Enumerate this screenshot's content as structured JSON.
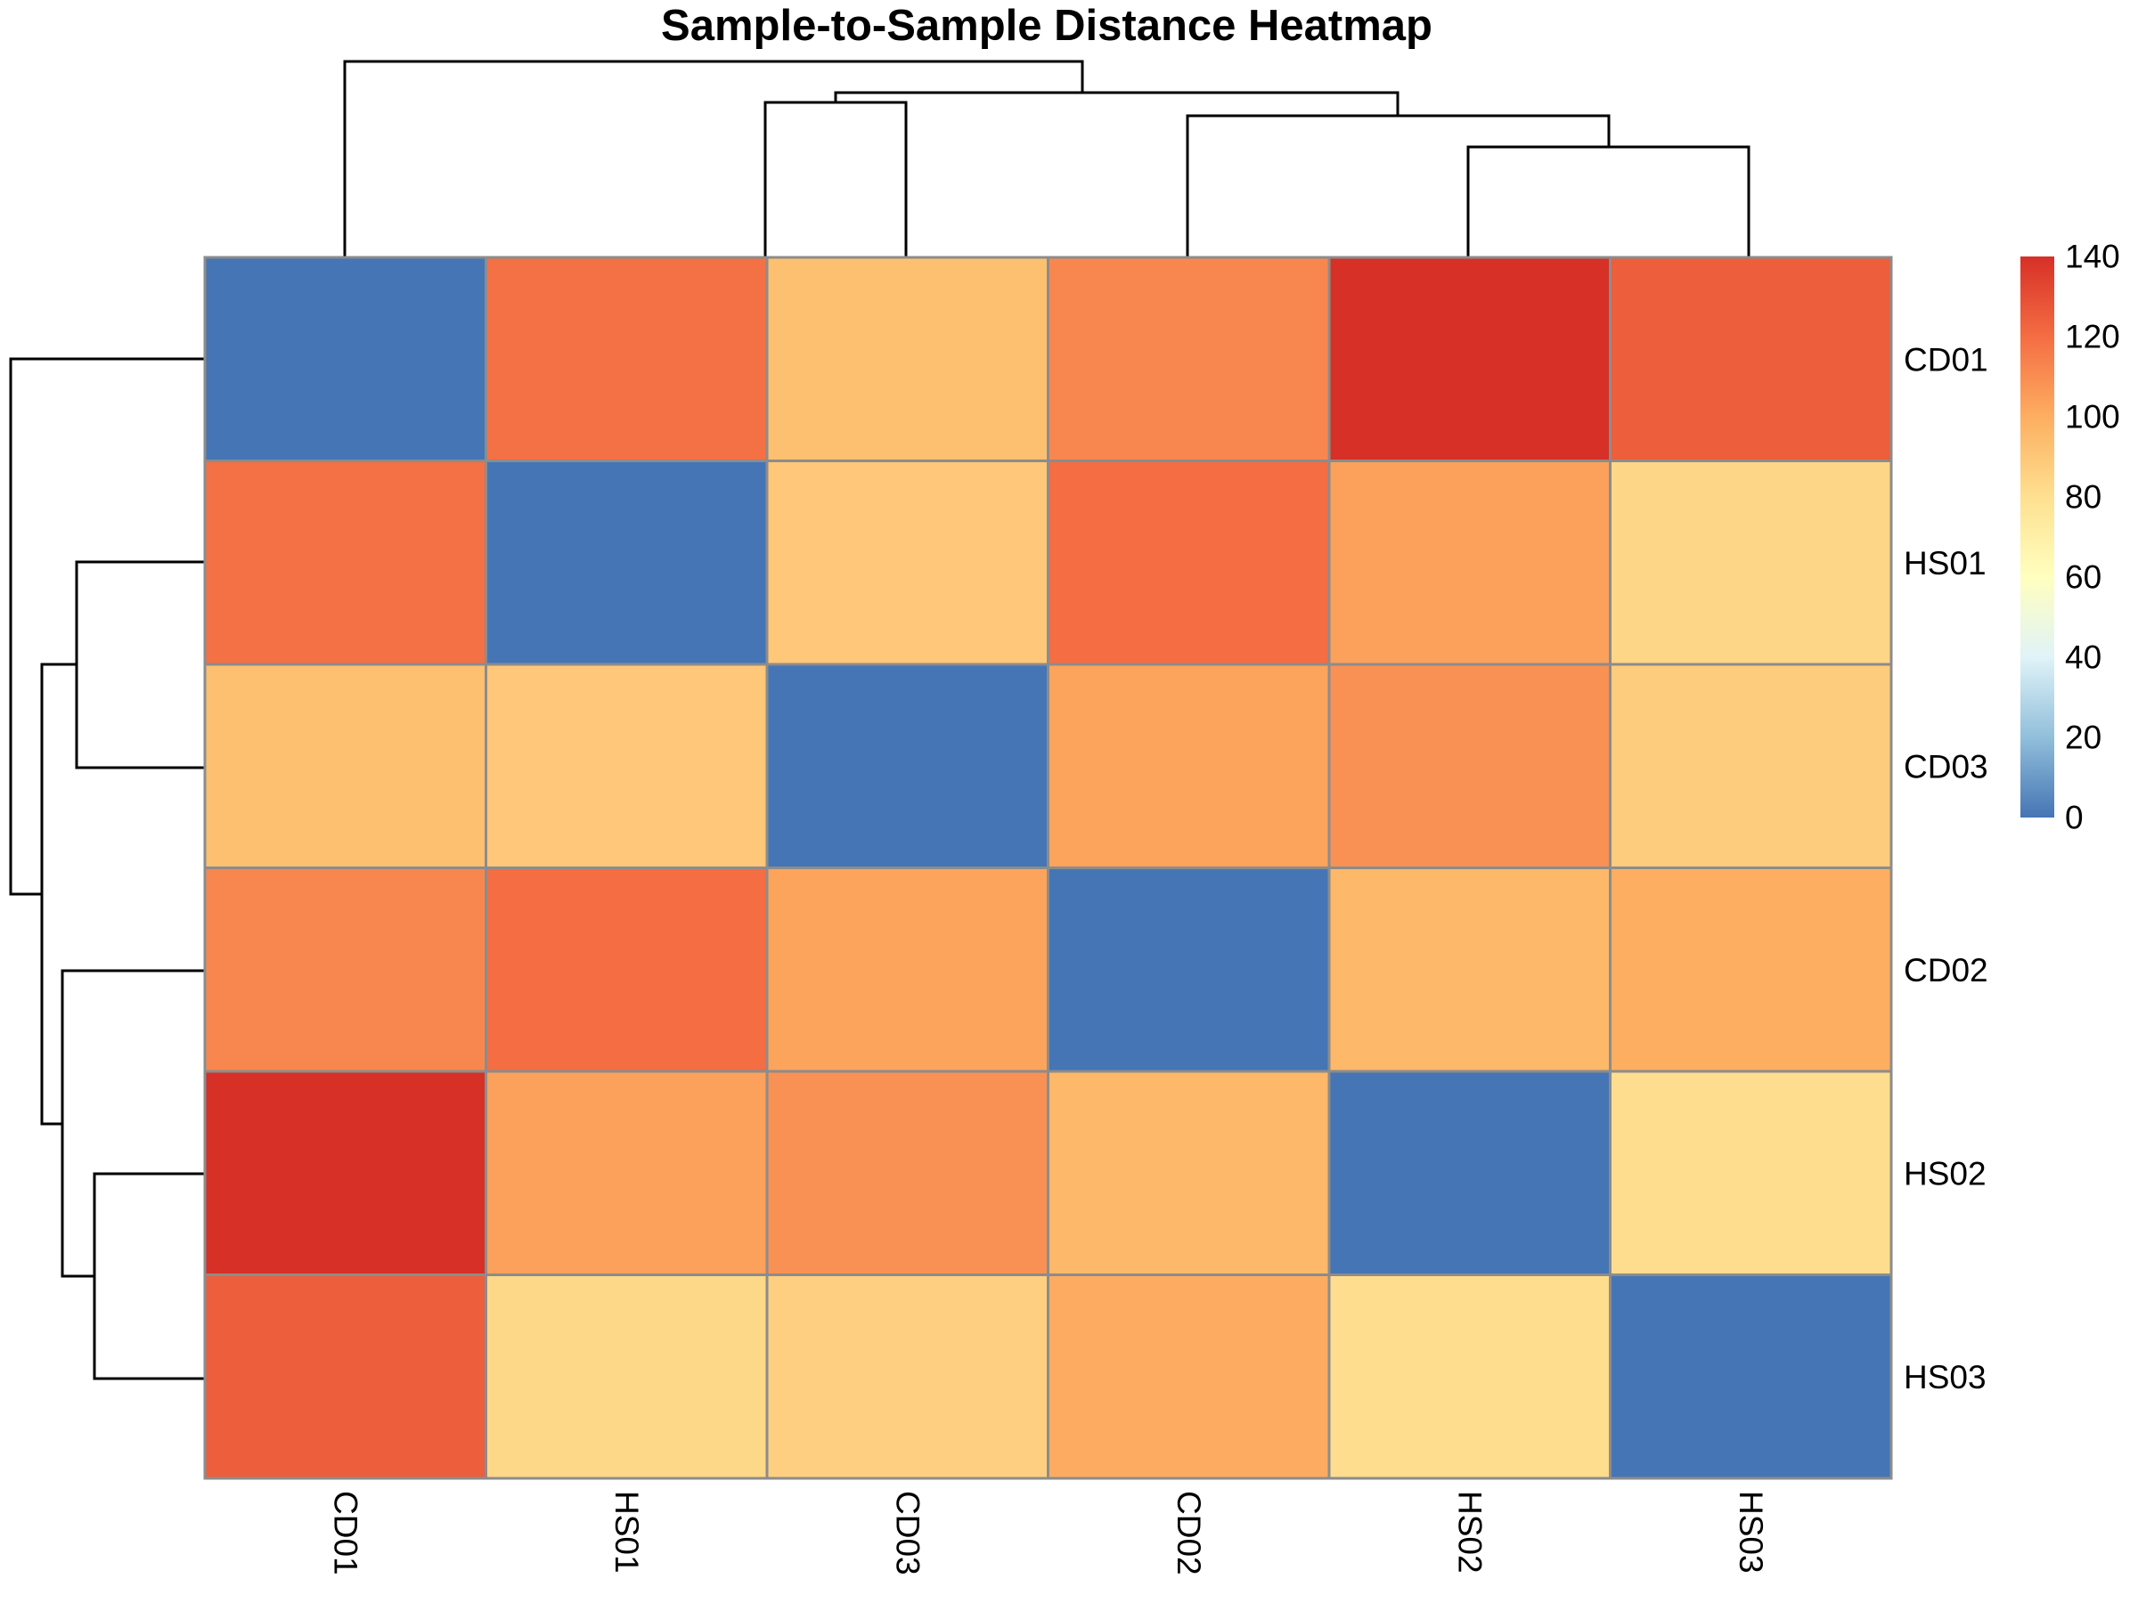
{
  "chart_data": {
    "type": "heatmap",
    "title": "Sample-to-Sample Distance Heatmap",
    "rows": [
      "CD01",
      "HS01",
      "CD03",
      "CD02",
      "HS02",
      "HS03"
    ],
    "columns": [
      "CD01",
      "HS01",
      "CD03",
      "CD02",
      "HS02",
      "HS03"
    ],
    "values": [
      [
        0,
        119,
        93,
        112,
        140,
        125
      ],
      [
        119,
        0,
        90,
        120,
        104,
        84
      ],
      [
        93,
        90,
        0,
        103,
        109,
        88
      ],
      [
        112,
        120,
        103,
        0,
        96,
        100
      ],
      [
        140,
        104,
        109,
        96,
        0,
        81
      ],
      [
        125,
        83,
        87,
        101,
        81,
        0
      ]
    ],
    "legend": {
      "range": [
        0,
        140
      ],
      "ticks": [
        "0",
        "20",
        "40",
        "60",
        "80",
        "100",
        "120",
        "140"
      ],
      "colors": [
        "#4575b4",
        "#91bfdb",
        "#e0f3f8",
        "#ffffbf",
        "#fee090",
        "#fdae61",
        "#f46d43",
        "#d73027"
      ],
      "placement": "right"
    },
    "column_dendrogram": true,
    "row_dendrogram": true
  }
}
